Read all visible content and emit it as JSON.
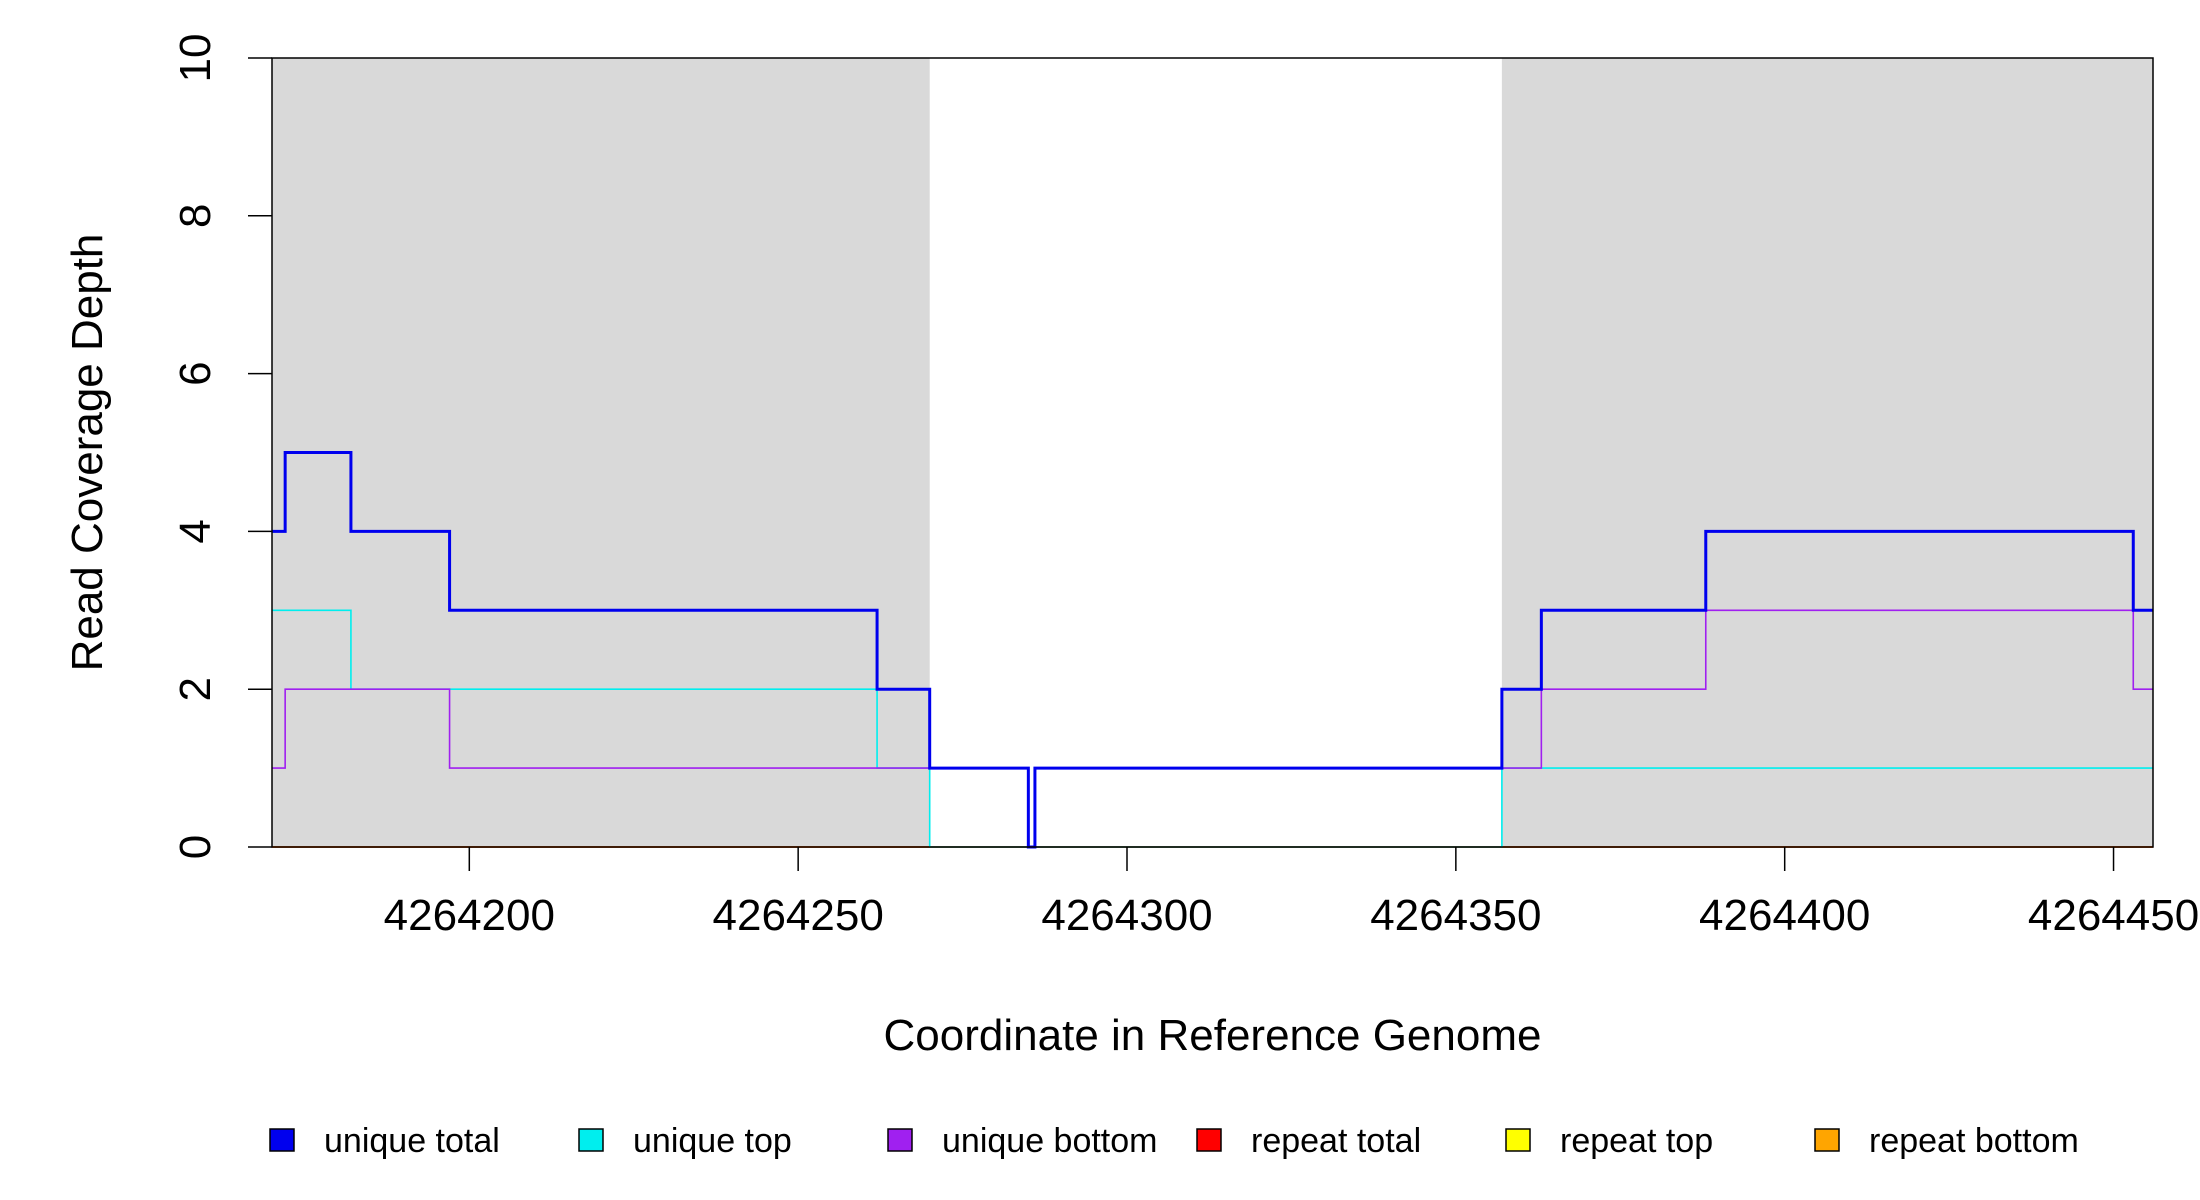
{
  "chart_data": {
    "type": "line",
    "title": "",
    "xlabel": "Coordinate in Reference Genome",
    "ylabel": "Read Coverage Depth",
    "xlim": [
      4264170,
      4264456
    ],
    "ylim": [
      0,
      10
    ],
    "x_ticks": [
      4264200,
      4264250,
      4264300,
      4264350,
      4264400,
      4264450
    ],
    "y_ticks": [
      0,
      2,
      4,
      6,
      8,
      10
    ],
    "x_tick_labels": [
      "4264200",
      "4264250",
      "4264300",
      "4264350",
      "4264400",
      "4264450"
    ],
    "y_tick_labels": [
      "0",
      "2",
      "4",
      "6",
      "8",
      "10"
    ],
    "shaded_regions": [
      {
        "x_start": 4264170,
        "x_end": 4264270,
        "color": "#d9d9d9"
      },
      {
        "x_start": 4264357,
        "x_end": 4264456,
        "color": "#d9d9d9"
      }
    ],
    "legend_position": "bottom",
    "series": [
      {
        "name": "unique total",
        "color": "#0000ee",
        "step_x": [
          4264170,
          4264172,
          4264182,
          4264197,
          4264262,
          4264270,
          4264285,
          4264286,
          4264357,
          4264363,
          4264388,
          4264453,
          4264456
        ],
        "step_y": [
          4,
          5,
          4,
          3,
          2,
          1,
          0,
          1,
          2,
          3,
          4,
          3
        ]
      },
      {
        "name": "unique top",
        "color": "#00eeee",
        "step_x": [
          4264170,
          4264182,
          4264262,
          4264270,
          4264357,
          4264456
        ],
        "step_y": [
          3,
          2,
          1,
          0,
          1
        ]
      },
      {
        "name": "unique bottom",
        "color": "#a020f0",
        "step_x": [
          4264170,
          4264172,
          4264197,
          4264285,
          4264286,
          4264363,
          4264388,
          4264453,
          4264456
        ],
        "step_y": [
          1,
          2,
          1,
          0,
          1,
          2,
          3,
          2
        ]
      },
      {
        "name": "repeat total",
        "color": "#ff0000",
        "step_x": [
          4264170,
          4264456
        ],
        "step_y": [
          0
        ]
      },
      {
        "name": "repeat top",
        "color": "#ffff00",
        "step_x": [
          4264170,
          4264456
        ],
        "step_y": [
          0
        ]
      },
      {
        "name": "repeat bottom",
        "color": "#ffa500",
        "step_x": [
          4264170,
          4264456
        ],
        "step_y": [
          0
        ]
      }
    ]
  }
}
